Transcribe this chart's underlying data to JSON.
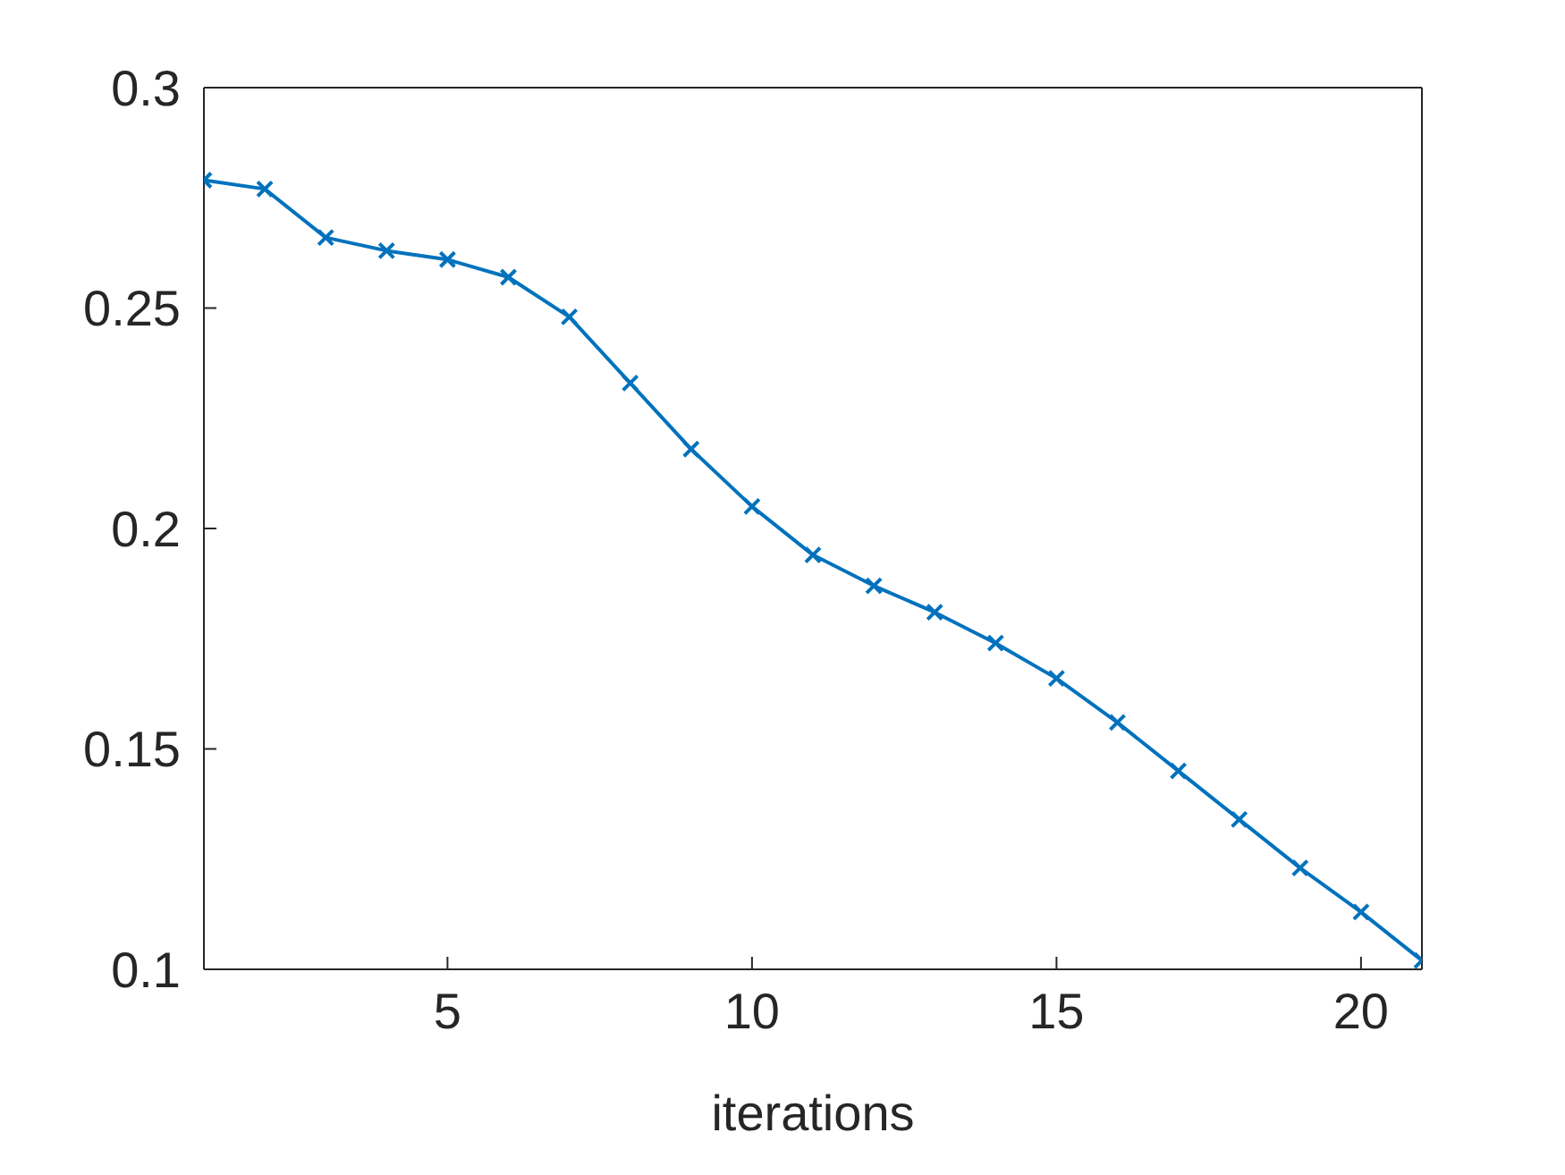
{
  "chart_data": {
    "type": "line",
    "xlabel": "iterations",
    "x": [
      1,
      2,
      3,
      4,
      5,
      6,
      7,
      8,
      9,
      10,
      11,
      12,
      13,
      14,
      15,
      16,
      17,
      18,
      19,
      20,
      21
    ],
    "series": [
      {
        "color": "#0072bd",
        "values": [
          0.279,
          0.277,
          0.266,
          0.263,
          0.261,
          0.257,
          0.248,
          0.233,
          0.218,
          0.205,
          0.194,
          0.187,
          0.181,
          0.174,
          0.166,
          0.156,
          0.145,
          0.134,
          0.123,
          0.113,
          0.102
        ]
      }
    ],
    "xlim": [
      1,
      21
    ],
    "xticks": [
      5,
      10,
      15,
      20
    ],
    "ylim": [
      0.1,
      0.3
    ],
    "yticks": [
      0.1,
      0.15,
      0.2,
      0.25,
      0.3
    ],
    "grid": false,
    "legend": false,
    "marker": "cross",
    "line_style": "solid"
  }
}
